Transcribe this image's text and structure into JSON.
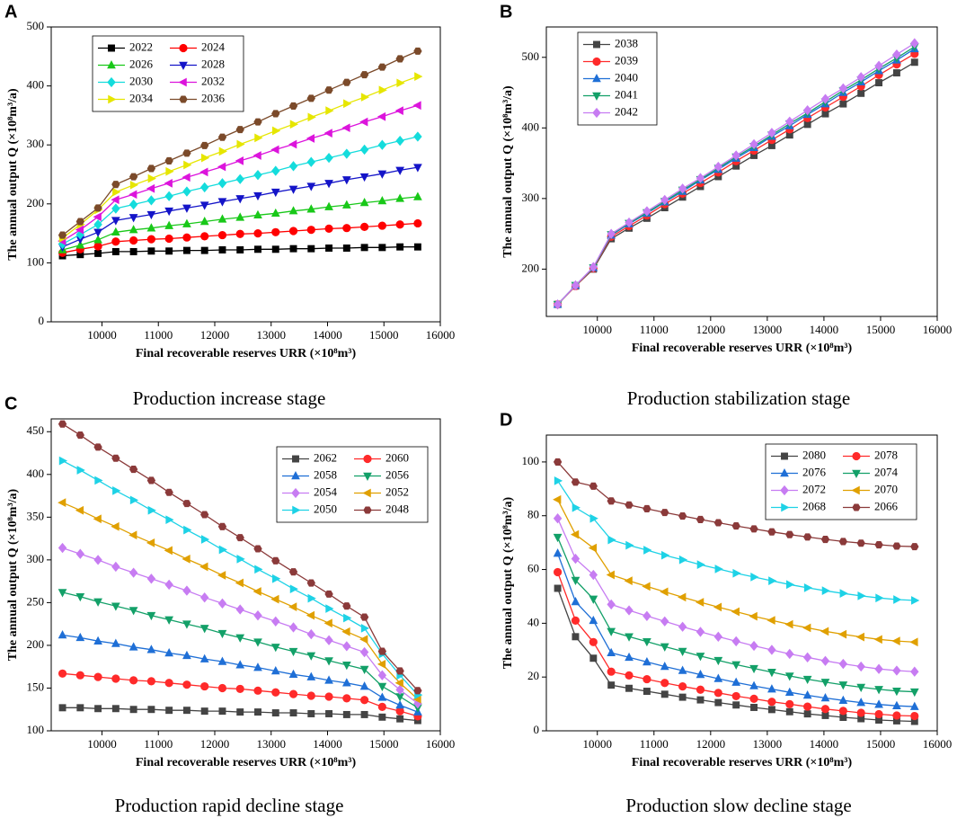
{
  "chart_data": [
    {
      "type": "line",
      "label": "A",
      "caption": "Production increase stage",
      "x_label": "Final recoverable reserves URR (×10⁸m³)",
      "y_label": "The annual output Q (×10⁸m³/a)",
      "x": [
        9300,
        9615,
        9930,
        10245,
        10560,
        10875,
        11190,
        11505,
        11820,
        12135,
        12450,
        12765,
        13080,
        13395,
        13710,
        14025,
        14340,
        14655,
        14970,
        15285,
        15600
      ],
      "xlim": [
        9100,
        16000
      ],
      "xticks": [
        10000,
        11000,
        12000,
        13000,
        14000,
        15000,
        16000
      ],
      "ylim": [
        0,
        500
      ],
      "yticks": [
        0,
        100,
        200,
        300,
        400,
        500
      ],
      "legend": "upper left",
      "series": [
        {
          "name": "2022",
          "color": "#000000",
          "marker": "square",
          "values": [
            112,
            114,
            116,
            119,
            119,
            120,
            120,
            121,
            121,
            122,
            122,
            123,
            123,
            124,
            124,
            125,
            125,
            126,
            126,
            127,
            127
          ]
        },
        {
          "name": "2024",
          "color": "#ff0000",
          "marker": "circle",
          "values": [
            117,
            123,
            128,
            136,
            138,
            140,
            141,
            143,
            145,
            147,
            149,
            150,
            152,
            154,
            156,
            158,
            159,
            161,
            163,
            165,
            167
          ]
        },
        {
          "name": "2026",
          "color": "#19c819",
          "marker": "triangle-up",
          "values": [
            122,
            130,
            139,
            152,
            156,
            159,
            163,
            166,
            170,
            174,
            177,
            181,
            184,
            188,
            191,
            195,
            198,
            202,
            205,
            209,
            212
          ]
        },
        {
          "name": "2028",
          "color": "#1414c8",
          "marker": "triangle-down",
          "values": [
            127,
            140,
            152,
            172,
            177,
            182,
            188,
            193,
            198,
            204,
            209,
            214,
            220,
            225,
            230,
            235,
            241,
            246,
            251,
            257,
            262
          ]
        },
        {
          "name": "2030",
          "color": "#14dcdc",
          "marker": "diamond",
          "values": [
            132,
            148,
            165,
            192,
            199,
            206,
            213,
            221,
            228,
            235,
            242,
            249,
            256,
            264,
            271,
            278,
            285,
            292,
            300,
            307,
            314
          ]
        },
        {
          "name": "2032",
          "color": "#dc14dc",
          "marker": "triangle-left",
          "values": [
            137,
            156,
            178,
            207,
            216,
            226,
            235,
            245,
            254,
            263,
            273,
            282,
            292,
            301,
            311,
            320,
            329,
            339,
            348,
            358,
            367
          ]
        },
        {
          "name": "2034",
          "color": "#e6e600",
          "marker": "triangle-right",
          "values": [
            142,
            165,
            190,
            220,
            232,
            243,
            255,
            266,
            278,
            289,
            301,
            312,
            324,
            335,
            347,
            358,
            370,
            381,
            393,
            405,
            416
          ]
        },
        {
          "name": "2036",
          "color": "#7b4a2a",
          "marker": "hexagon",
          "values": [
            147,
            170,
            193,
            233,
            246,
            260,
            273,
            286,
            299,
            313,
            326,
            339,
            353,
            366,
            379,
            393,
            406,
            419,
            432,
            446,
            459
          ]
        }
      ]
    },
    {
      "type": "line",
      "label": "B",
      "caption": "Production stabilization stage",
      "x_label": "Final recoverable reserves URR (×10⁸m³)",
      "y_label": "The annual output Q (×10⁸m³/a)",
      "x": [
        9300,
        9615,
        9930,
        10245,
        10560,
        10875,
        11190,
        11505,
        11820,
        12135,
        12450,
        12765,
        13080,
        13395,
        13710,
        14025,
        14340,
        14655,
        14970,
        15285,
        15600
      ],
      "xlim": [
        9100,
        16000
      ],
      "xticks": [
        10000,
        11000,
        12000,
        13000,
        14000,
        15000,
        16000
      ],
      "ylim": [
        133,
        543
      ],
      "yticks": [
        200,
        300,
        400,
        500
      ],
      "legend": "upper left",
      "series": [
        {
          "name": "2038",
          "color": "#444444",
          "marker": "square",
          "values": [
            150,
            176,
            200,
            243,
            258,
            272,
            287,
            302,
            317,
            331,
            346,
            361,
            375,
            390,
            405,
            420,
            434,
            449,
            464,
            478,
            493
          ]
        },
        {
          "name": "2039",
          "color": "#ff2a2a",
          "marker": "circle",
          "values": [
            150,
            176,
            201,
            246,
            261,
            276,
            292,
            307,
            322,
            337,
            353,
            368,
            383,
            398,
            414,
            429,
            444,
            459,
            475,
            490,
            505
          ]
        },
        {
          "name": "2040",
          "color": "#1f6fd6",
          "marker": "triangle-up",
          "values": [
            150,
            177,
            202,
            248,
            264,
            279,
            295,
            310,
            326,
            341,
            357,
            372,
            388,
            403,
            419,
            434,
            450,
            465,
            481,
            496,
            512
          ]
        },
        {
          "name": "2041",
          "color": "#13a068",
          "marker": "triangle-down",
          "values": [
            150,
            177,
            202,
            249,
            265,
            280,
            296,
            312,
            327,
            343,
            359,
            374,
            390,
            406,
            421,
            437,
            453,
            468,
            484,
            499,
            515
          ]
        },
        {
          "name": "2042",
          "color": "#c77cf2",
          "marker": "diamond",
          "values": [
            150,
            177,
            203,
            250,
            266,
            282,
            298,
            314,
            329,
            345,
            361,
            377,
            393,
            409,
            425,
            441,
            456,
            472,
            488,
            504,
            520
          ]
        }
      ]
    },
    {
      "type": "line",
      "label": "C",
      "caption": "Production rapid decline stage",
      "x_label": "Final recoverable reserves URR (×10⁸m³)",
      "y_label": "The annual output Q (×10⁸m³/a)",
      "x": [
        9300,
        9615,
        9930,
        10245,
        10560,
        10875,
        11190,
        11505,
        11820,
        12135,
        12450,
        12765,
        13080,
        13395,
        13710,
        14025,
        14340,
        14655,
        14970,
        15285,
        15600
      ],
      "xlim": [
        9100,
        16000
      ],
      "xticks": [
        10000,
        11000,
        12000,
        13000,
        14000,
        15000,
        16000
      ],
      "ylim": [
        100,
        465
      ],
      "yticks": [
        100,
        150,
        200,
        250,
        300,
        350,
        400,
        450
      ],
      "legend": "upper right",
      "series": [
        {
          "name": "2062",
          "color": "#444444",
          "marker": "square",
          "values": [
            127,
            127,
            126,
            126,
            125,
            125,
            124,
            124,
            123,
            123,
            122,
            122,
            121,
            121,
            120,
            120,
            119,
            119,
            116,
            114,
            112
          ]
        },
        {
          "name": "2060",
          "color": "#ff2a2a",
          "marker": "circle",
          "values": [
            167,
            165,
            163,
            161,
            159,
            158,
            156,
            154,
            152,
            150,
            149,
            147,
            145,
            143,
            141,
            140,
            138,
            136,
            128,
            123,
            117
          ]
        },
        {
          "name": "2058",
          "color": "#1f6fd6",
          "marker": "triangle-up",
          "values": [
            212,
            209,
            205,
            202,
            198,
            195,
            191,
            188,
            184,
            181,
            177,
            174,
            170,
            166,
            163,
            159,
            156,
            152,
            139,
            130,
            122
          ]
        },
        {
          "name": "2056",
          "color": "#13a068",
          "marker": "triangle-down",
          "values": [
            262,
            257,
            251,
            246,
            241,
            235,
            230,
            225,
            220,
            214,
            209,
            204,
            198,
            193,
            188,
            182,
            177,
            172,
            152,
            140,
            127
          ]
        },
        {
          "name": "2054",
          "color": "#c77cf2",
          "marker": "diamond",
          "values": [
            314,
            307,
            300,
            292,
            285,
            278,
            271,
            264,
            256,
            249,
            242,
            235,
            228,
            221,
            213,
            206,
            199,
            192,
            165,
            148,
            132
          ]
        },
        {
          "name": "2052",
          "color": "#e0a000",
          "marker": "triangle-left",
          "values": [
            367,
            358,
            348,
            339,
            329,
            320,
            311,
            301,
            292,
            282,
            273,
            263,
            254,
            245,
            235,
            226,
            216,
            207,
            178,
            156,
            137
          ]
        },
        {
          "name": "2050",
          "color": "#1ed2e6",
          "marker": "triangle-right",
          "values": [
            416,
            405,
            393,
            381,
            370,
            358,
            347,
            335,
            324,
            312,
            301,
            289,
            278,
            266,
            255,
            243,
            232,
            220,
            190,
            165,
            142
          ]
        },
        {
          "name": "2048",
          "color": "#8b3a3a",
          "marker": "hexagon",
          "values": [
            459,
            446,
            432,
            419,
            406,
            393,
            379,
            366,
            353,
            339,
            326,
            313,
            299,
            286,
            273,
            260,
            246,
            233,
            193,
            170,
            147
          ]
        }
      ]
    },
    {
      "type": "line",
      "label": "D",
      "caption": "Production slow decline stage",
      "x_label": "Final recoverable reserves URR (×10⁸m³)",
      "y_label": "The annual output Q (×10⁸m³/a)",
      "x": [
        9300,
        9615,
        9930,
        10245,
        10560,
        10875,
        11190,
        11505,
        11820,
        12135,
        12450,
        12765,
        13080,
        13395,
        13710,
        14025,
        14340,
        14655,
        14970,
        15285,
        15600
      ],
      "xlim": [
        9100,
        16000
      ],
      "xticks": [
        10000,
        11000,
        12000,
        13000,
        14000,
        15000,
        16000
      ],
      "ylim": [
        0,
        110
      ],
      "yticks": [
        0,
        20,
        40,
        60,
        80,
        100
      ],
      "legend": "upper right",
      "series": [
        {
          "name": "2080",
          "color": "#444444",
          "marker": "square",
          "values": [
            53,
            35,
            27,
            17,
            15.8,
            14.7,
            13.6,
            12.5,
            11.5,
            10.5,
            9.6,
            8.7,
            7.9,
            7.1,
            6.3,
            5.7,
            5.0,
            4.5,
            4.0,
            3.7,
            3.5
          ]
        },
        {
          "name": "2078",
          "color": "#ff2a2a",
          "marker": "circle",
          "values": [
            59,
            41,
            33,
            22,
            20.6,
            19.2,
            17.8,
            16.5,
            15.3,
            14.1,
            12.9,
            11.9,
            10.8,
            9.9,
            9.0,
            8.1,
            7.4,
            6.7,
            6.2,
            5.7,
            5.5
          ]
        },
        {
          "name": "2076",
          "color": "#1f6fd6",
          "marker": "triangle-up",
          "values": [
            66,
            48,
            41,
            29,
            27.3,
            25.6,
            23.9,
            22.4,
            20.9,
            19.4,
            18.0,
            16.7,
            15.5,
            14.3,
            13.2,
            12.2,
            11.3,
            10.5,
            9.8,
            9.3,
            9
          ]
        },
        {
          "name": "2074",
          "color": "#13a068",
          "marker": "triangle-down",
          "values": [
            72,
            56,
            49,
            37,
            35.0,
            33.2,
            31.3,
            29.6,
            27.8,
            26.2,
            24.6,
            23.2,
            21.8,
            20.4,
            19.2,
            18.1,
            17.1,
            16.2,
            15.4,
            14.8,
            14.5
          ]
        },
        {
          "name": "2072",
          "color": "#c77cf2",
          "marker": "diamond",
          "values": [
            79,
            64,
            58,
            47,
            44.8,
            42.7,
            40.7,
            38.7,
            36.8,
            35.0,
            33.3,
            31.6,
            30.1,
            28.6,
            27.3,
            26.0,
            24.9,
            23.9,
            23.0,
            22.4,
            22
          ]
        },
        {
          "name": "2070",
          "color": "#e0a000",
          "marker": "triangle-left",
          "values": [
            86,
            73,
            68,
            58,
            55.8,
            53.7,
            51.7,
            49.7,
            47.8,
            46.0,
            44.3,
            42.6,
            41.1,
            39.6,
            38.3,
            37.0,
            35.9,
            34.9,
            34.0,
            33.4,
            33
          ]
        },
        {
          "name": "2068",
          "color": "#1ed2e6",
          "marker": "triangle-right",
          "values": [
            93,
            83,
            79,
            71,
            69.0,
            67.2,
            65.3,
            63.6,
            61.8,
            60.2,
            58.6,
            57.2,
            55.8,
            54.4,
            53.2,
            52.1,
            51.1,
            50.2,
            49.4,
            48.8,
            48.5
          ]
        },
        {
          "name": "2066",
          "color": "#8b3a3a",
          "marker": "hexagon",
          "values": [
            100,
            92.5,
            91,
            85.5,
            84.0,
            82.6,
            81.2,
            79.9,
            78.6,
            77.4,
            76.2,
            75.1,
            74.0,
            73.0,
            72.1,
            71.2,
            70.4,
            69.8,
            69.2,
            68.7,
            68.5
          ]
        }
      ]
    }
  ]
}
